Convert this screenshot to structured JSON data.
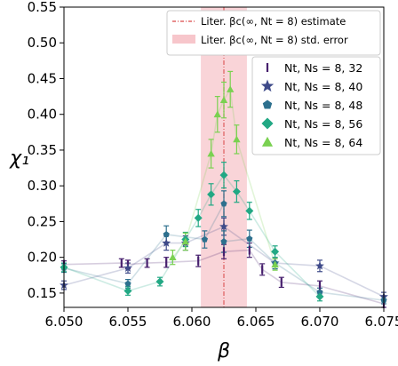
{
  "chart_data": {
    "type": "scatter",
    "xlabel": "β",
    "ylabel": "χ₁",
    "xlim": [
      6.05,
      6.075
    ],
    "ylim": [
      0.13,
      0.55
    ],
    "xticks": [
      "6.050",
      "6.055",
      "6.060",
      "6.065",
      "6.070",
      "6.075"
    ],
    "xtick_values": [
      6.05,
      6.055,
      6.06,
      6.065,
      6.07,
      6.075
    ],
    "yticks": [
      "0.15",
      "0.20",
      "0.25",
      "0.30",
      "0.35",
      "0.40",
      "0.45",
      "0.50",
      "0.55"
    ],
    "ytick_values": [
      0.15,
      0.2,
      0.25,
      0.3,
      0.35,
      0.4,
      0.45,
      0.5,
      0.55
    ],
    "grid": false,
    "reference": {
      "estimate": 6.0625,
      "error": 0.0018,
      "estimate_color": "#e06666",
      "band_color": "#f7c6cb",
      "legend": [
        "Liter. βc(∞, Nt = 8) estimate",
        "Liter. βc(∞, Nt = 8) std. error"
      ]
    },
    "legend_position": "upper-right",
    "series": [
      {
        "name": "Nt, Ns = 8, 32",
        "marker": "tick",
        "color": "#47206e",
        "points": [
          [
            6.05,
            0.19,
            0.005
          ],
          [
            6.0545,
            0.192,
            0.006
          ],
          [
            6.055,
            0.19,
            0.006
          ],
          [
            6.0565,
            0.192,
            0.006
          ],
          [
            6.058,
            0.193,
            0.007
          ],
          [
            6.0605,
            0.195,
            0.008
          ],
          [
            6.0625,
            0.208,
            0.01
          ],
          [
            6.0645,
            0.21,
            0.01
          ],
          [
            6.0655,
            0.183,
            0.008
          ],
          [
            6.067,
            0.165,
            0.007
          ],
          [
            6.07,
            0.16,
            0.007
          ],
          [
            6.075,
            0.135,
            0.005
          ]
        ]
      },
      {
        "name": "Nt, Ns = 8, 40",
        "marker": "star",
        "color": "#3e4a89",
        "points": [
          [
            6.05,
            0.161,
            0.006
          ],
          [
            6.055,
            0.185,
            0.007
          ],
          [
            6.058,
            0.22,
            0.01
          ],
          [
            6.0595,
            0.22,
            0.01
          ],
          [
            6.0625,
            0.243,
            0.012
          ],
          [
            6.0665,
            0.192,
            0.008
          ],
          [
            6.07,
            0.188,
            0.008
          ],
          [
            6.075,
            0.145,
            0.006
          ]
        ]
      },
      {
        "name": "Nt, Ns = 8, 48",
        "marker": "pentagon",
        "color": "#2d708e",
        "points": [
          [
            6.05,
            0.185,
            0.006
          ],
          [
            6.055,
            0.163,
            0.006
          ],
          [
            6.058,
            0.232,
            0.012
          ],
          [
            6.061,
            0.225,
            0.012
          ],
          [
            6.0625,
            0.275,
            0.018
          ],
          [
            6.0625,
            0.222,
            0.015
          ],
          [
            6.0645,
            0.226,
            0.012
          ],
          [
            6.0665,
            0.192,
            0.008
          ],
          [
            6.07,
            0.151,
            0.006
          ],
          [
            6.075,
            0.14,
            0.005
          ]
        ]
      },
      {
        "name": "Nt, Ns = 8, 56",
        "marker": "diamond",
        "color": "#22a884",
        "points": [
          [
            6.05,
            0.186,
            0.006
          ],
          [
            6.055,
            0.153,
            0.006
          ],
          [
            6.0575,
            0.166,
            0.006
          ],
          [
            6.0595,
            0.225,
            0.01
          ],
          [
            6.0605,
            0.255,
            0.012
          ],
          [
            6.0615,
            0.288,
            0.015
          ],
          [
            6.0625,
            0.315,
            0.018
          ],
          [
            6.0635,
            0.292,
            0.015
          ],
          [
            6.0645,
            0.265,
            0.012
          ],
          [
            6.0665,
            0.208,
            0.008
          ],
          [
            6.07,
            0.145,
            0.006
          ]
        ]
      },
      {
        "name": "Nt, Ns = 8, 64",
        "marker": "triangle",
        "color": "#7ad151",
        "points": [
          [
            6.0585,
            0.2,
            0.01
          ],
          [
            6.0595,
            0.222,
            0.012
          ],
          [
            6.0615,
            0.345,
            0.02
          ],
          [
            6.062,
            0.4,
            0.025
          ],
          [
            6.0625,
            0.42,
            0.025
          ],
          [
            6.063,
            0.435,
            0.025
          ],
          [
            6.0635,
            0.365,
            0.02
          ],
          [
            6.0665,
            0.19,
            0.008
          ]
        ]
      }
    ]
  }
}
